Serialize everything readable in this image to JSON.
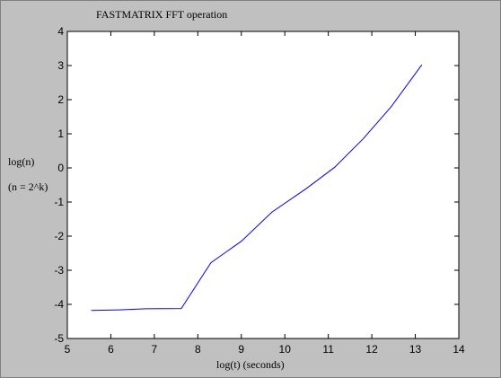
{
  "chart_data": {
    "type": "line",
    "title": "FASTMATRIX FFT operation",
    "xlabel": "log(t) (seconds)",
    "ylabel": "log(n)",
    "ylabel_note": "(n = 2^k)",
    "xlim": [
      5,
      14
    ],
    "ylim": [
      -5,
      4
    ],
    "xticks": [
      5,
      6,
      7,
      8,
      9,
      10,
      11,
      12,
      13,
      14
    ],
    "yticks": [
      -5,
      -4,
      -3,
      -2,
      -1,
      0,
      1,
      2,
      3,
      4
    ],
    "grid": false,
    "legend": "none",
    "series": [
      {
        "color": "#0000ff",
        "x": [
          5.55,
          6.2,
          6.8,
          7.62,
          8.3,
          9.0,
          9.7,
          10.5,
          11.15,
          11.8,
          12.45,
          13.15
        ],
        "y": [
          -4.18,
          -4.16,
          -4.13,
          -4.12,
          -2.78,
          -2.15,
          -1.3,
          -0.6,
          0.02,
          0.85,
          1.8,
          3.02
        ]
      }
    ]
  }
}
